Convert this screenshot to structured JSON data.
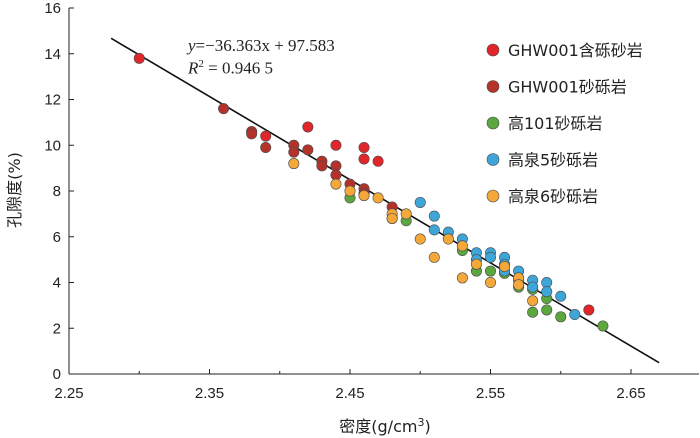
{
  "chart_data": {
    "type": "scatter",
    "equation": {
      "prefix": "y",
      "body": "=−36.363x + 97.583"
    },
    "r2": {
      "label": "R",
      "sup": "2",
      "value": " = 0.946 5"
    },
    "xlabel": "密度(g/cm",
    "xlabel_sup": "3",
    "xlabel_suffix": ")",
    "ylabel": "孔隙度(%)",
    "xlim": [
      2.25,
      2.7
    ],
    "ylim": [
      0,
      16
    ],
    "xticks": [
      "2.25",
      "2.35",
      "2.45",
      "2.55",
      "2.65"
    ],
    "yticks": [
      "0",
      "2",
      "4",
      "6",
      "8",
      "10",
      "12",
      "14",
      "16"
    ],
    "legend_position": "top-right",
    "fit_line": {
      "slope": -36.363,
      "intercept": 97.583,
      "x_range": [
        2.28,
        2.67
      ]
    },
    "series": [
      {
        "name": "GHW001含砾砂岩",
        "color": "#e0262b",
        "x": [
          2.3,
          2.39,
          2.42,
          2.44,
          2.46,
          2.46,
          2.47,
          2.62
        ],
        "y": [
          13.8,
          10.4,
          10.8,
          10.0,
          9.9,
          9.4,
          9.3,
          2.8
        ]
      },
      {
        "name": "GHW001砂砾岩",
        "color": "#b5322b",
        "x": [
          2.36,
          2.38,
          2.38,
          2.39,
          2.41,
          2.41,
          2.42,
          2.43,
          2.43,
          2.44,
          2.44,
          2.45,
          2.46,
          2.46,
          2.48
        ],
        "y": [
          11.6,
          10.6,
          10.5,
          9.9,
          10.0,
          9.7,
          9.8,
          9.3,
          9.1,
          9.1,
          8.7,
          8.3,
          8.1,
          7.9,
          7.3
        ]
      },
      {
        "name": "高101砂砾岩",
        "color": "#5ba63f",
        "x": [
          2.45,
          2.48,
          2.49,
          2.53,
          2.54,
          2.55,
          2.56,
          2.57,
          2.58,
          2.58,
          2.59,
          2.59,
          2.6,
          2.63
        ],
        "y": [
          7.7,
          6.8,
          6.7,
          5.4,
          4.5,
          4.5,
          4.4,
          3.8,
          3.7,
          2.7,
          3.3,
          2.8,
          2.5,
          2.1
        ]
      },
      {
        "name": "高泉5砂砾岩",
        "color": "#3fa5d9",
        "x": [
          2.5,
          2.51,
          2.51,
          2.52,
          2.53,
          2.54,
          2.54,
          2.55,
          2.55,
          2.56,
          2.56,
          2.56,
          2.57,
          2.57,
          2.58,
          2.58,
          2.59,
          2.59,
          2.6,
          2.61
        ],
        "y": [
          7.5,
          6.9,
          6.3,
          6.2,
          5.9,
          5.3,
          5.0,
          5.3,
          5.1,
          5.1,
          4.8,
          4.5,
          4.5,
          4.1,
          4.1,
          3.8,
          4.0,
          3.6,
          3.4,
          2.6
        ]
      },
      {
        "name": "高泉6砂砾岩",
        "color": "#f4a83a",
        "x": [
          2.41,
          2.44,
          2.45,
          2.46,
          2.47,
          2.48,
          2.48,
          2.49,
          2.5,
          2.51,
          2.52,
          2.53,
          2.53,
          2.54,
          2.55,
          2.56,
          2.57,
          2.57,
          2.58
        ],
        "y": [
          9.2,
          8.3,
          8.0,
          7.8,
          7.7,
          7.0,
          6.8,
          7.0,
          5.9,
          5.1,
          5.9,
          5.6,
          4.2,
          4.8,
          4.0,
          4.7,
          4.2,
          3.9,
          3.2
        ]
      }
    ]
  }
}
